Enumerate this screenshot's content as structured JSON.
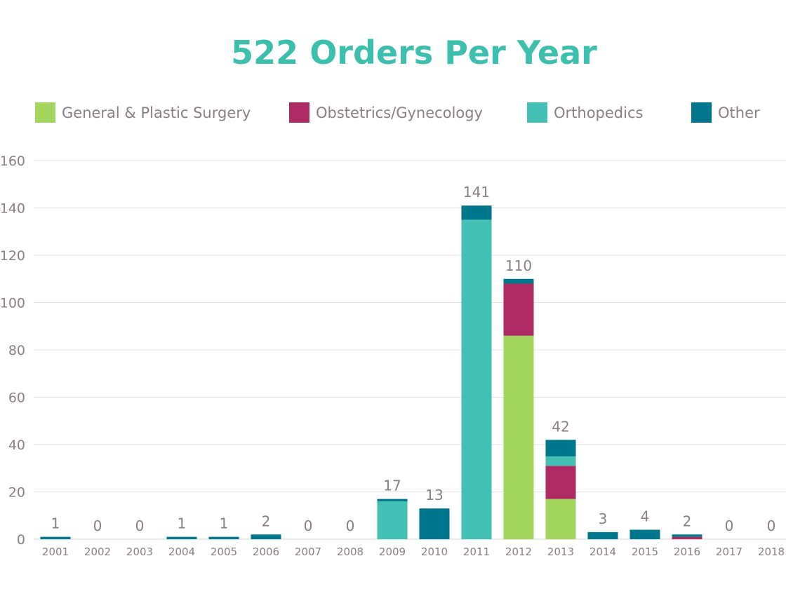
{
  "chart_data": {
    "type": "bar",
    "stacked": true,
    "title": "522 Orders Per Year",
    "xlabel": "",
    "ylabel": "",
    "ylim": [
      0,
      160
    ],
    "yticks": [
      0,
      20,
      40,
      60,
      80,
      100,
      120,
      140,
      160
    ],
    "grid": true,
    "legend": "top",
    "categories": [
      "2001",
      "2002",
      "2003",
      "2004",
      "2005",
      "2006",
      "2007",
      "2008",
      "2009",
      "2010",
      "2011",
      "2012",
      "2013",
      "2014",
      "2015",
      "2016",
      "2017",
      "2018"
    ],
    "series": [
      {
        "name": "General & Plastic Surgery",
        "color": "#a3d65c",
        "values": [
          0,
          0,
          0,
          0,
          0,
          0,
          0,
          0,
          0,
          0,
          0,
          86,
          17,
          0,
          0,
          0,
          0,
          0
        ]
      },
      {
        "name": "Obstetrics/Gynecology",
        "color": "#ad2a63",
        "values": [
          0,
          0,
          0,
          0,
          0,
          0,
          0,
          0,
          0,
          0,
          0,
          22,
          14,
          0,
          0,
          1,
          0,
          0
        ]
      },
      {
        "name": "Orthopedics",
        "color": "#44bfb3",
        "values": [
          0,
          0,
          0,
          0,
          0,
          0,
          0,
          0,
          16,
          0,
          135,
          0,
          4,
          0,
          0,
          0,
          0,
          0
        ]
      },
      {
        "name": "Other",
        "color": "#00768c",
        "values": [
          1,
          0,
          0,
          1,
          1,
          2,
          0,
          0,
          1,
          13,
          6,
          2,
          7,
          3,
          4,
          1,
          0,
          0
        ]
      }
    ],
    "totals": [
      1,
      0,
      0,
      1,
      1,
      2,
      0,
      0,
      17,
      13,
      141,
      110,
      42,
      3,
      4,
      2,
      0,
      0
    ]
  }
}
